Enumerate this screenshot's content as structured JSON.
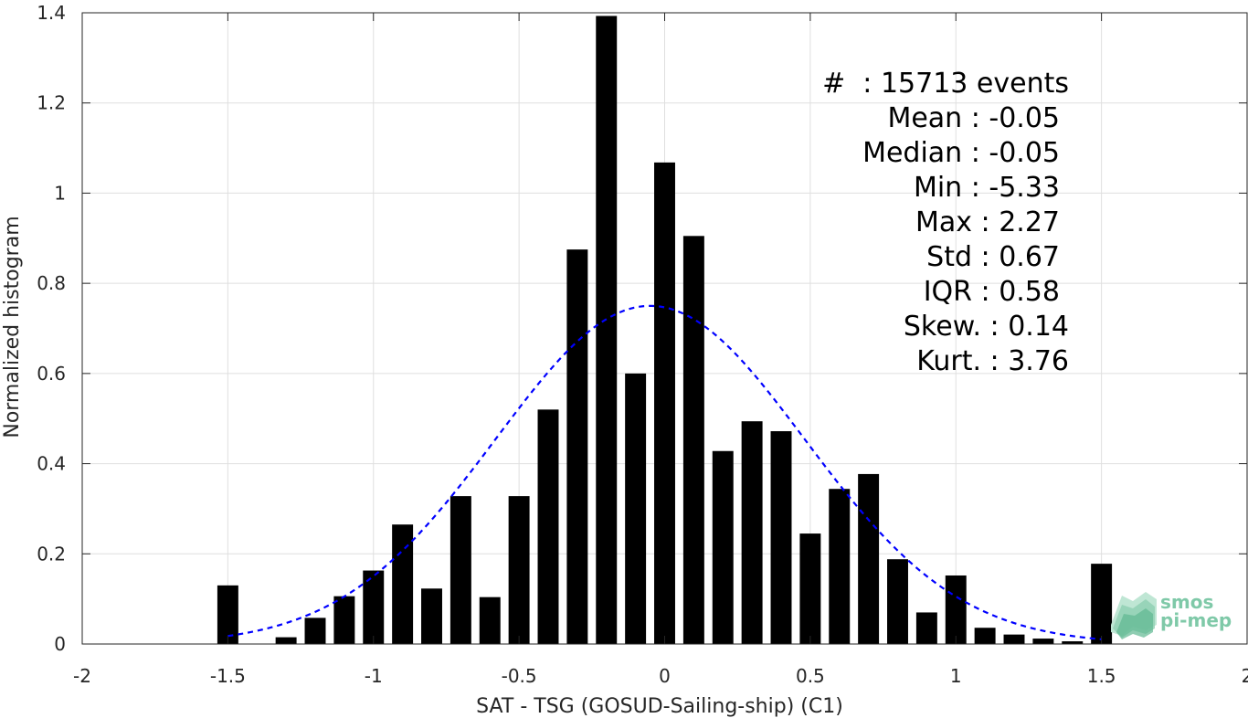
{
  "chart_data": {
    "type": "bar",
    "xlabel": "SAT - TSG (GOSUD-Sailing-ship) (C1)",
    "ylabel": "Normalized histogram",
    "xlim": [
      -2,
      2
    ],
    "ylim": [
      0,
      1.4
    ],
    "xticks": [
      "-2",
      "-1.5",
      "-1",
      "-0.5",
      "0",
      "0.5",
      "1",
      "1.5",
      "2"
    ],
    "yticks": [
      "0",
      "0.2",
      "0.4",
      "0.6",
      "0.8",
      "1",
      "1.2",
      "1.4"
    ],
    "grid": true,
    "bin_width": 0.1,
    "bars": {
      "name": "Normalized histogram",
      "color": "#000000",
      "x": [
        -1.5,
        -1.4,
        -1.3,
        -1.2,
        -1.1,
        -1.0,
        -0.9,
        -0.8,
        -0.7,
        -0.6,
        -0.5,
        -0.4,
        -0.3,
        -0.2,
        -0.1,
        0.0,
        0.1,
        0.2,
        0.3,
        0.4,
        0.5,
        0.6,
        0.7,
        0.8,
        0.9,
        1.0,
        1.1,
        1.2,
        1.3,
        1.4,
        1.5
      ],
      "values": [
        0.13,
        0.0,
        0.015,
        0.058,
        0.106,
        0.163,
        0.265,
        0.123,
        0.328,
        0.104,
        0.328,
        0.52,
        0.875,
        1.393,
        0.6,
        1.068,
        0.905,
        0.428,
        0.494,
        0.472,
        0.245,
        0.344,
        0.377,
        0.188,
        0.07,
        0.152,
        0.036,
        0.021,
        0.012,
        0.006,
        0.178
      ]
    },
    "fit": {
      "name": "Gaussian fit",
      "color": "#0000ff",
      "style": "dashed",
      "mean": -0.05,
      "peak": 0.75,
      "sigma": 0.53,
      "x_range": [
        -1.5,
        1.5
      ]
    },
    "stats_lines": [
      "#  : 15713 events",
      "Mean : -0.05",
      "Median : -0.05",
      "Min : -5.33",
      "Max : 2.27",
      "Std : 0.67",
      "IQR : 0.58",
      "Skew. : 0.14",
      "Kurt. : 3.76"
    ],
    "logo": [
      "smos",
      "pi-mep"
    ]
  }
}
